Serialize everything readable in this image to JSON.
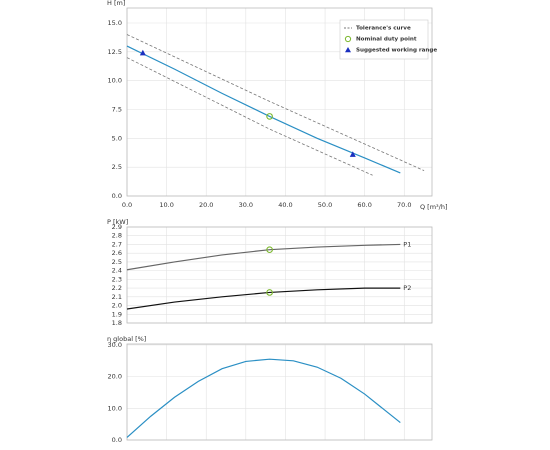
{
  "chart_data": [
    {
      "type": "line",
      "y_label": "H [m]",
      "x_label": "Q [m³/h]",
      "xlim": [
        0,
        77
      ],
      "ylim": [
        0,
        16.3
      ],
      "xticks": [
        {
          "value": 0,
          "label": "0.0"
        },
        {
          "value": 10,
          "label": "10.0"
        },
        {
          "value": 20,
          "label": "20.0"
        },
        {
          "value": 30,
          "label": "30.0"
        },
        {
          "value": 40,
          "label": "40.0"
        },
        {
          "value": 50,
          "label": "50.0"
        },
        {
          "value": 60,
          "label": "60.0"
        },
        {
          "value": 70,
          "label": "70.0"
        }
      ],
      "yticks": [
        {
          "value": 0,
          "label": "0.0"
        },
        2.5,
        {
          "value": 5,
          "label": "5.0"
        },
        7.5,
        {
          "value": 10,
          "label": "10.0"
        },
        12.5,
        {
          "value": 15,
          "label": "15.0"
        }
      ],
      "grid": true,
      "legend": "top-right",
      "series": [
        {
          "color": "#2a8fc4",
          "x": [
            0,
            12,
            24,
            36,
            48,
            60,
            69
          ],
          "values": [
            13,
            11,
            8.9,
            6.9,
            5,
            3.3,
            2.0
          ]
        },
        {
          "name": "Tolerance's curve",
          "color": "#777777",
          "dashed": true,
          "x": [
            0,
            36,
            75,
            null,
            0,
            36,
            62
          ],
          "values": [
            14,
            8.2,
            2.2,
            null,
            12,
            5.8,
            1.8
          ]
        },
        {
          "name": "Nominal duty point",
          "color": "#7cb82f",
          "marker": "circle",
          "x": [
            36
          ],
          "values": [
            6.9
          ]
        },
        {
          "name": "Suggested working range",
          "color": "#1a2fbf",
          "marker": "triangle",
          "x": [
            4,
            57
          ],
          "values": [
            12.4,
            3.6
          ]
        }
      ]
    },
    {
      "type": "line",
      "y_label": "P [kW]",
      "xlim": [
        0,
        77
      ],
      "ylim": [
        1.8,
        2.9
      ],
      "xticks": [
        0,
        10,
        20,
        30,
        40,
        50,
        60,
        70
      ],
      "xtick_labels": false,
      "yticks": [
        1.8,
        1.9,
        {
          "value": 2.0,
          "label": "2.0"
        },
        2.1,
        2.2,
        2.3,
        2.4,
        2.5,
        2.6,
        2.7,
        2.8,
        2.9
      ],
      "grid": true,
      "name_at_end": true,
      "series": [
        {
          "name": "P1",
          "color": "#666666",
          "x": [
            0,
            12,
            24,
            36,
            48,
            60,
            69
          ],
          "values": [
            2.41,
            2.5,
            2.58,
            2.64,
            2.67,
            2.69,
            2.7
          ]
        },
        {
          "name": "P2",
          "color": "#111111",
          "x": [
            0,
            12,
            24,
            36,
            48,
            60,
            69
          ],
          "values": [
            1.96,
            2.04,
            2.1,
            2.15,
            2.18,
            2.2,
            2.2
          ]
        },
        {
          "color": "#7cb82f",
          "marker": "circle",
          "x": [
            36,
            36
          ],
          "values": [
            2.64,
            2.15
          ]
        }
      ]
    },
    {
      "type": "line",
      "y_label": "η global [%]",
      "xlim": [
        0,
        77
      ],
      "ylim": [
        0,
        30.3
      ],
      "xticks": [
        0,
        10,
        20,
        30,
        40,
        50,
        60,
        70
      ],
      "xtick_labels": false,
      "yticks": [
        {
          "value": 0,
          "label": "0.0"
        },
        {
          "value": 10,
          "label": "10.0"
        },
        {
          "value": 20,
          "label": "20.0"
        },
        {
          "value": 30,
          "label": "30.0"
        }
      ],
      "grid": true,
      "series": [
        {
          "color": "#2a8fc4",
          "x": [
            0,
            6,
            12,
            18,
            24,
            30,
            36,
            42,
            48,
            54,
            60,
            66,
            69
          ],
          "values": [
            0.8,
            7.5,
            13.5,
            18.5,
            22.5,
            24.8,
            25.5,
            25,
            23,
            19.5,
            14.5,
            8.5,
            5.5
          ]
        }
      ]
    }
  ]
}
